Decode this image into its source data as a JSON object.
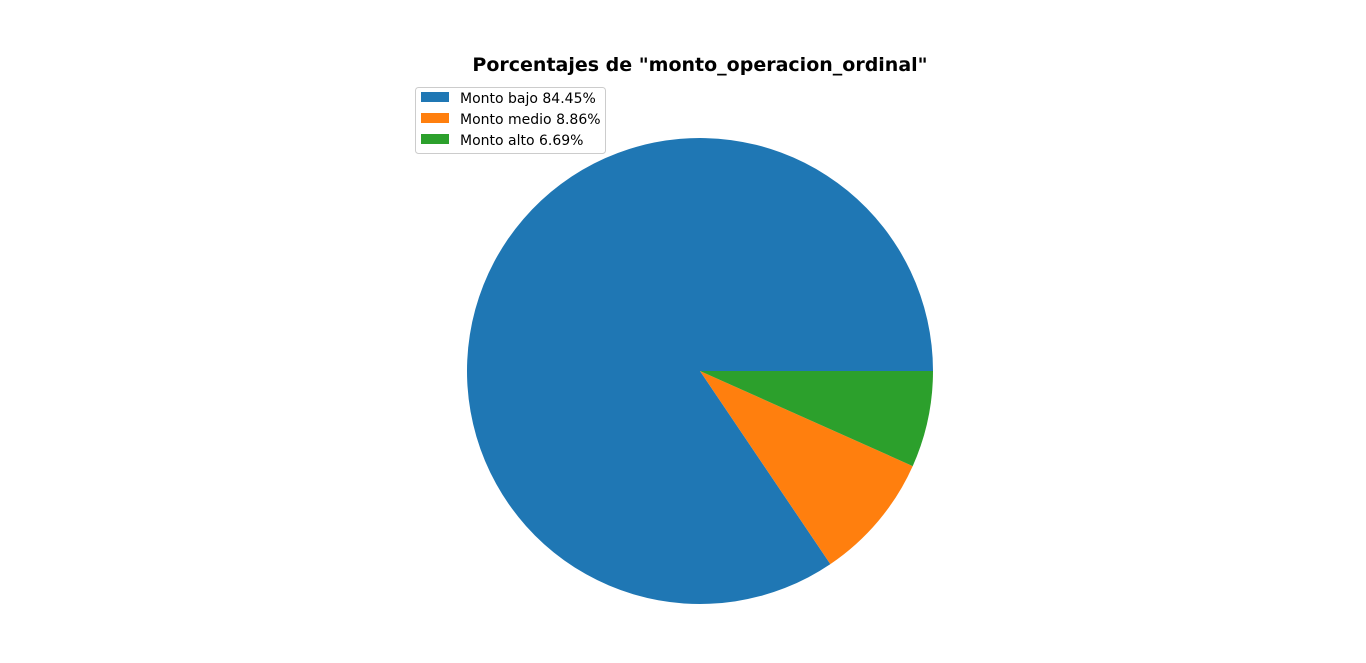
{
  "chart_data": {
    "type": "pie",
    "title": "Porcentajes de \"monto_operacion_ordinal\"",
    "categories": [
      "Monto bajo",
      "Monto medio",
      "Monto alto"
    ],
    "values": [
      84.45,
      8.86,
      6.69
    ],
    "legend_labels": [
      "Monto bajo 84.45%",
      "Monto medio 8.86%",
      "Monto alto 6.69%"
    ],
    "colors": [
      "#1f77b4",
      "#ff7f0e",
      "#2ca02c"
    ],
    "start_angle_deg": 0,
    "direction": "counterclockwise",
    "legend_position": "upper-left"
  }
}
